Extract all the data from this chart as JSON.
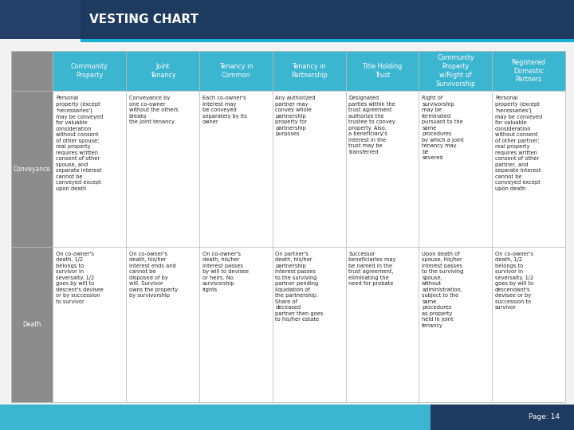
{
  "title": "VESTING CHART",
  "title_bg": "#1e3a5f",
  "title_bar_left_bg": "#243f6a",
  "accent_line_color": "#1ab0d5",
  "header_bg": "#3bb5d0",
  "header_text_color": "#ffffff",
  "row_label_bg": "#8c8c8c",
  "row_label_text_color": "#ffffff",
  "cell_bg": "#ffffff",
  "cell_border_color": "#bbbbbb",
  "page_label": "Page: 14",
  "bottom_bar_bg": "#3bb5d0",
  "bottom_bar_right_bg": "#1e3a5f",
  "columns": [
    "Community\nProperty",
    "Joint\nTenancy",
    "Tenancy in\nCommon",
    "Tenancy in\nPartnership",
    "Title Holding\nTrust",
    "Community\nProperty\nw/Right of\nSurvivorship",
    "Registered\nDomestic\nPartners"
  ],
  "rows": [
    {
      "label": "Conveyance",
      "cells": [
        "Personal\nproperty (except\n'necessaries')\nmay be conveyed\nfor valuable\nconsideration\nwithout consent\nof other spouse;\nreal property\nrequires written\nconsent of other\nspouse, and\nseparate interest\ncannot be\nconveyed except\nupon death",
        "Conveyance by\none co-owner\nwithout the others\nbreaks\nthe joint tenancy",
        "Each co-owner's\ninterest may\nbe conveyed\nseparately by its\nowner",
        "Any authorized\npartner may\nconvey whole\npartnership\nproperty for\npartnership\npurposes",
        "Designated\nparties within the\ntrust agreement\nauthorize the\ntrustee to convey\nproperty. Also,\na beneficiary's\ninterest in the\ntrust may be\ntransferred",
        "Right of\nsurvivorship\nmay be\nterminated\npursuant to the\nsame\nprocedures\nby which a joint\ntenancy may\nbe\nsevered",
        "Personal\nproperty (except\n'necessaries')\nmay be conveyed\nfor valuable\nconsideration\nwithout consent\nof other partner;\nreal property\nrequires written\nconsent of other\npartner, and\nseparate interest\ncannot be\nconveyed except\nupon death"
      ]
    },
    {
      "label": "Death",
      "cells": [
        "On co-owner's\ndeath, 1/2\nbelongs to\nsurvivor in\nseversalty. 1/2\ngoes by will to\ndescent's devisee\nor by succession\nto survivor",
        "On co-owner's\ndeath, his/her\ninterest ends and\ncannot be\ndisposed of by\nwill. Survivor\nowns the property\nby survivorship",
        "On co-owner's\ndeath, his/her\ninterest passes\nby will to devisee\nor heirs. No\nsurvivorship\nrights",
        "On partner's\ndeath, his/her\npartnership\ninterest passes\nto the surviving\npartner pending\nliquidation of\nthe partnership.\nShare of\ndeceased\npartner then goes\nto his/her estate",
        "Successor\nbeneficiaries may\nbe named in the\ntrust agreement,\neliminating the\nneed for probate",
        "Upon death of\nspouse, his/her\ninterest passes\nto the surviving\nspouse,\nwithout\nadministration,\nsubject to the\nsame\nprocedures\nas property\nheld in joint\ntenancy",
        "On co-owner's\ndeath, 1/2\nbelongs to\nsurvivor in\nseversalty. 1/2\ngoes by will to\ndescendant's\ndevisee or by\nsuccession to\nsurvivor"
      ]
    }
  ]
}
